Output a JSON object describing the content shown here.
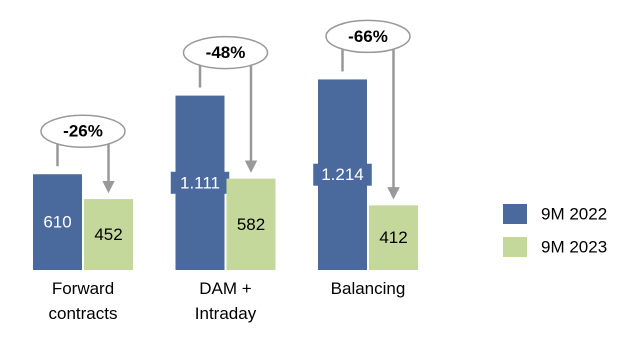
{
  "chart_data": {
    "type": "bar",
    "categories": [
      "Forward contracts",
      "DAM + Intraday",
      "Balancing"
    ],
    "series": [
      {
        "name": "9M 2022",
        "color": "#4a6a9e",
        "values": [
          610,
          1111,
          1214
        ],
        "value_labels": [
          "610",
          "1.111",
          "1.214"
        ]
      },
      {
        "name": "9M 2023",
        "color": "#c5d89b",
        "values": [
          452,
          582,
          412
        ],
        "value_labels": [
          "452",
          "582",
          "412"
        ]
      }
    ],
    "changes": [
      -26,
      -48,
      -66
    ],
    "change_labels": [
      "-26%",
      "-48%",
      "-66%"
    ],
    "ylim": [
      0,
      1720
    ]
  }
}
